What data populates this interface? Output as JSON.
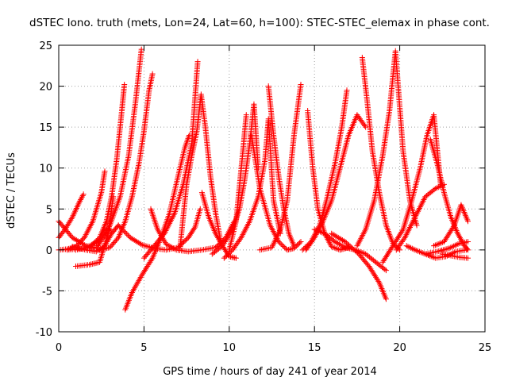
{
  "chart_data": {
    "type": "scatter",
    "title": "dSTEC Iono. truth (mets, Lon=24, Lat=60, h=100): STEC-STEC_elemax in phase cont.",
    "xlabel": "GPS time / hours of day 241 of year 2014",
    "ylabel": "dSTEC  / TECUs",
    "xlim": [
      0,
      25
    ],
    "ylim": [
      -10,
      25
    ],
    "xticks": [
      0,
      5,
      10,
      15,
      20,
      25
    ],
    "yticks": [
      -10,
      -5,
      0,
      5,
      10,
      15,
      20,
      25
    ],
    "grid": true,
    "legend": "none",
    "marker": "+",
    "color": "#ff0000",
    "series": [
      {
        "x": [
          0.0,
          0.4,
          0.8,
          1.2,
          1.45
        ],
        "y": [
          1.5,
          2.6,
          4.0,
          5.8,
          6.8
        ]
      },
      {
        "x": [
          0.0,
          0.5,
          1.0,
          1.5,
          2.0,
          2.5,
          2.7
        ],
        "y": [
          0.0,
          0.1,
          0.4,
          1.5,
          3.5,
          7.0,
          9.6
        ]
      },
      {
        "x": [
          0.0,
          0.8,
          1.6,
          2.2,
          2.6,
          3.0
        ],
        "y": [
          3.5,
          1.5,
          0.5,
          0.2,
          1.5,
          2.5
        ]
      },
      {
        "x": [
          1.0,
          1.8,
          2.4,
          2.9,
          3.2
        ],
        "y": [
          -2.0,
          -1.8,
          -1.5,
          2.0,
          6.5
        ]
      },
      {
        "x": [
          1.0,
          1.8,
          2.4,
          2.8,
          3.1,
          3.4,
          3.7,
          3.85
        ],
        "y": [
          0.0,
          0.3,
          1.5,
          3.5,
          6.5,
          11.0,
          17.0,
          20.2
        ]
      },
      {
        "x": [
          0.8,
          1.6,
          2.2,
          2.7,
          3.1,
          3.5
        ],
        "y": [
          0.4,
          0.0,
          -0.2,
          0.5,
          2.0,
          3.0
        ]
      },
      {
        "x": [
          0.5,
          1.5,
          2.3,
          3.0,
          3.6,
          4.1,
          4.5,
          4.85
        ],
        "y": [
          0.0,
          0.2,
          1.0,
          3.0,
          6.5,
          11.5,
          18.0,
          24.5
        ]
      },
      {
        "x": [
          2.4,
          3.0,
          3.5,
          3.9,
          4.3,
          4.7,
          5.0,
          5.3,
          5.5
        ],
        "y": [
          0.0,
          0.3,
          1.5,
          3.5,
          6.5,
          10.5,
          14.5,
          19.5,
          21.5
        ]
      },
      {
        "x": [
          3.9,
          4.3,
          4.9,
          5.5,
          6.0,
          6.5,
          7.0,
          7.4,
          7.65
        ],
        "y": [
          -7.3,
          -5.2,
          -3.0,
          -1.0,
          1.5,
          4.5,
          9.0,
          12.5,
          14.0
        ]
      },
      {
        "x": [
          3.5,
          4.2,
          4.9,
          5.6,
          6.3,
          7.0,
          7.6,
          8.0,
          8.3
        ],
        "y": [
          3.0,
          1.5,
          0.6,
          0.2,
          0.0,
          0.3,
          1.5,
          2.8,
          5.0
        ]
      },
      {
        "x": [
          5.0,
          5.6,
          6.2,
          6.8,
          7.3,
          7.8,
          8.15
        ],
        "y": [
          -1.0,
          0.5,
          2.0,
          4.5,
          8.0,
          13.0,
          23.0
        ]
      },
      {
        "x": [
          5.4,
          5.8,
          6.3,
          6.9,
          7.6,
          8.4,
          9.2,
          9.8,
          10.3
        ],
        "y": [
          5.0,
          2.5,
          0.7,
          0.0,
          -0.2,
          0.0,
          0.3,
          1.5,
          3.5
        ]
      },
      {
        "x": [
          7.1,
          7.3,
          7.5,
          7.8,
          8.1,
          8.35,
          8.6,
          8.9,
          9.2,
          9.5
        ],
        "y": [
          0.0,
          4.0,
          8.0,
          11.5,
          14.5,
          19.0,
          15.0,
          9.0,
          4.5,
          1.0
        ]
      },
      {
        "x": [
          8.4,
          8.8,
          9.2,
          9.6,
          10.0,
          10.4
        ],
        "y": [
          7.0,
          4.0,
          2.0,
          0.5,
          -0.8,
          -1.0
        ]
      },
      {
        "x": [
          9.0,
          9.6,
          10.2,
          10.6,
          10.9,
          11.2,
          11.45,
          11.7
        ],
        "y": [
          -0.5,
          0.5,
          2.5,
          5.0,
          8.5,
          13.0,
          17.8,
          10.0
        ]
      },
      {
        "x": [
          9.7,
          10.2,
          10.7,
          11.2,
          11.7,
          12.1,
          12.3,
          12.6,
          13.0
        ],
        "y": [
          -1.0,
          0.0,
          1.5,
          3.5,
          6.5,
          11.0,
          16.0,
          6.0,
          2.0
        ]
      },
      {
        "x": [
          10.0,
          10.4,
          10.8,
          11.0
        ],
        "y": [
          0.0,
          3.5,
          12.0,
          16.5
        ]
      },
      {
        "x": [
          11.3,
          11.8,
          12.4,
          12.9,
          13.4,
          13.8,
          14.2
        ],
        "y": [
          14.0,
          7.5,
          3.0,
          1.0,
          0.0,
          0.2,
          1.0
        ]
      },
      {
        "x": [
          11.8,
          12.5,
          13.0,
          13.4,
          13.8,
          14.2
        ],
        "y": [
          0.0,
          0.3,
          2.5,
          6.0,
          14.0,
          20.2
        ]
      },
      {
        "x": [
          12.3,
          12.6,
          12.9,
          13.2,
          13.5,
          13.8
        ],
        "y": [
          20.0,
          14.0,
          9.0,
          5.0,
          2.0,
          0.5
        ]
      },
      {
        "x": [
          14.3,
          14.8,
          15.3,
          15.7,
          16.2,
          16.6,
          16.9
        ],
        "y": [
          0.0,
          1.0,
          3.0,
          6.0,
          10.5,
          15.0,
          19.5
        ]
      },
      {
        "x": [
          14.6,
          14.9,
          15.2,
          15.6,
          16.0,
          16.5,
          17.0
        ],
        "y": [
          17.0,
          10.0,
          5.0,
          2.0,
          0.4,
          0.0,
          0.3
        ]
      },
      {
        "x": [
          14.5,
          15.0,
          15.5,
          16.0,
          16.5,
          17.0,
          17.5,
          18.0
        ],
        "y": [
          0.0,
          1.5,
          3.5,
          6.0,
          10.0,
          14.0,
          16.5,
          15.0
        ]
      },
      {
        "x": [
          15.0,
          15.6,
          16.2,
          16.8,
          17.4,
          18.0,
          18.6,
          19.2
        ],
        "y": [
          2.5,
          2.0,
          1.0,
          0.3,
          0.0,
          -0.5,
          -1.5,
          -2.5
        ]
      },
      {
        "x": [
          16.0,
          16.8,
          17.6,
          18.2,
          18.8,
          19.2
        ],
        "y": [
          2.0,
          1.0,
          -0.5,
          -2.0,
          -4.0,
          -6.0
        ]
      },
      {
        "x": [
          17.8,
          18.1,
          18.4,
          18.8,
          19.2,
          19.6,
          20.0
        ],
        "y": [
          23.5,
          18.0,
          12.0,
          7.0,
          3.0,
          0.8,
          0.0
        ]
      },
      {
        "x": [
          17.5,
          18.0,
          18.5,
          19.0,
          19.4,
          19.75,
          20.2,
          20.6,
          21.0
        ],
        "y": [
          0.5,
          2.5,
          6.0,
          11.5,
          17.0,
          24.3,
          12.0,
          6.0,
          3.0
        ]
      },
      {
        "x": [
          19.0,
          19.6,
          20.2,
          20.7,
          21.2,
          21.6,
          22.0,
          22.4
        ],
        "y": [
          -1.5,
          0.5,
          2.5,
          6.0,
          10.0,
          14.0,
          16.5,
          8.0
        ]
      },
      {
        "x": [
          19.8,
          20.3,
          20.9,
          21.5,
          22.1,
          22.6
        ],
        "y": [
          0.0,
          1.5,
          4.0,
          6.5,
          7.5,
          8.0
        ]
      },
      {
        "x": [
          20.4,
          20.9,
          21.5,
          22.1,
          22.7,
          23.3,
          23.9
        ],
        "y": [
          0.5,
          0.0,
          -0.5,
          -1.0,
          -0.8,
          -0.2,
          0.0
        ]
      },
      {
        "x": [
          21.8,
          22.2,
          22.6,
          23.0,
          23.4,
          23.8,
          24.0
        ],
        "y": [
          13.5,
          10.5,
          7.0,
          4.0,
          2.0,
          0.5,
          0.0
        ]
      },
      {
        "x": [
          22.0,
          22.6,
          23.2,
          23.6,
          24.0
        ],
        "y": [
          0.5,
          1.0,
          3.0,
          5.5,
          3.5
        ]
      },
      {
        "x": [
          21.5,
          22.2,
          22.9,
          23.5,
          24.0
        ],
        "y": [
          -0.5,
          -0.2,
          0.2,
          0.8,
          1.0
        ]
      },
      {
        "x": [
          22.5,
          23.0,
          23.5,
          24.0
        ],
        "y": [
          -0.5,
          -0.7,
          -0.9,
          -1.0
        ]
      }
    ]
  }
}
